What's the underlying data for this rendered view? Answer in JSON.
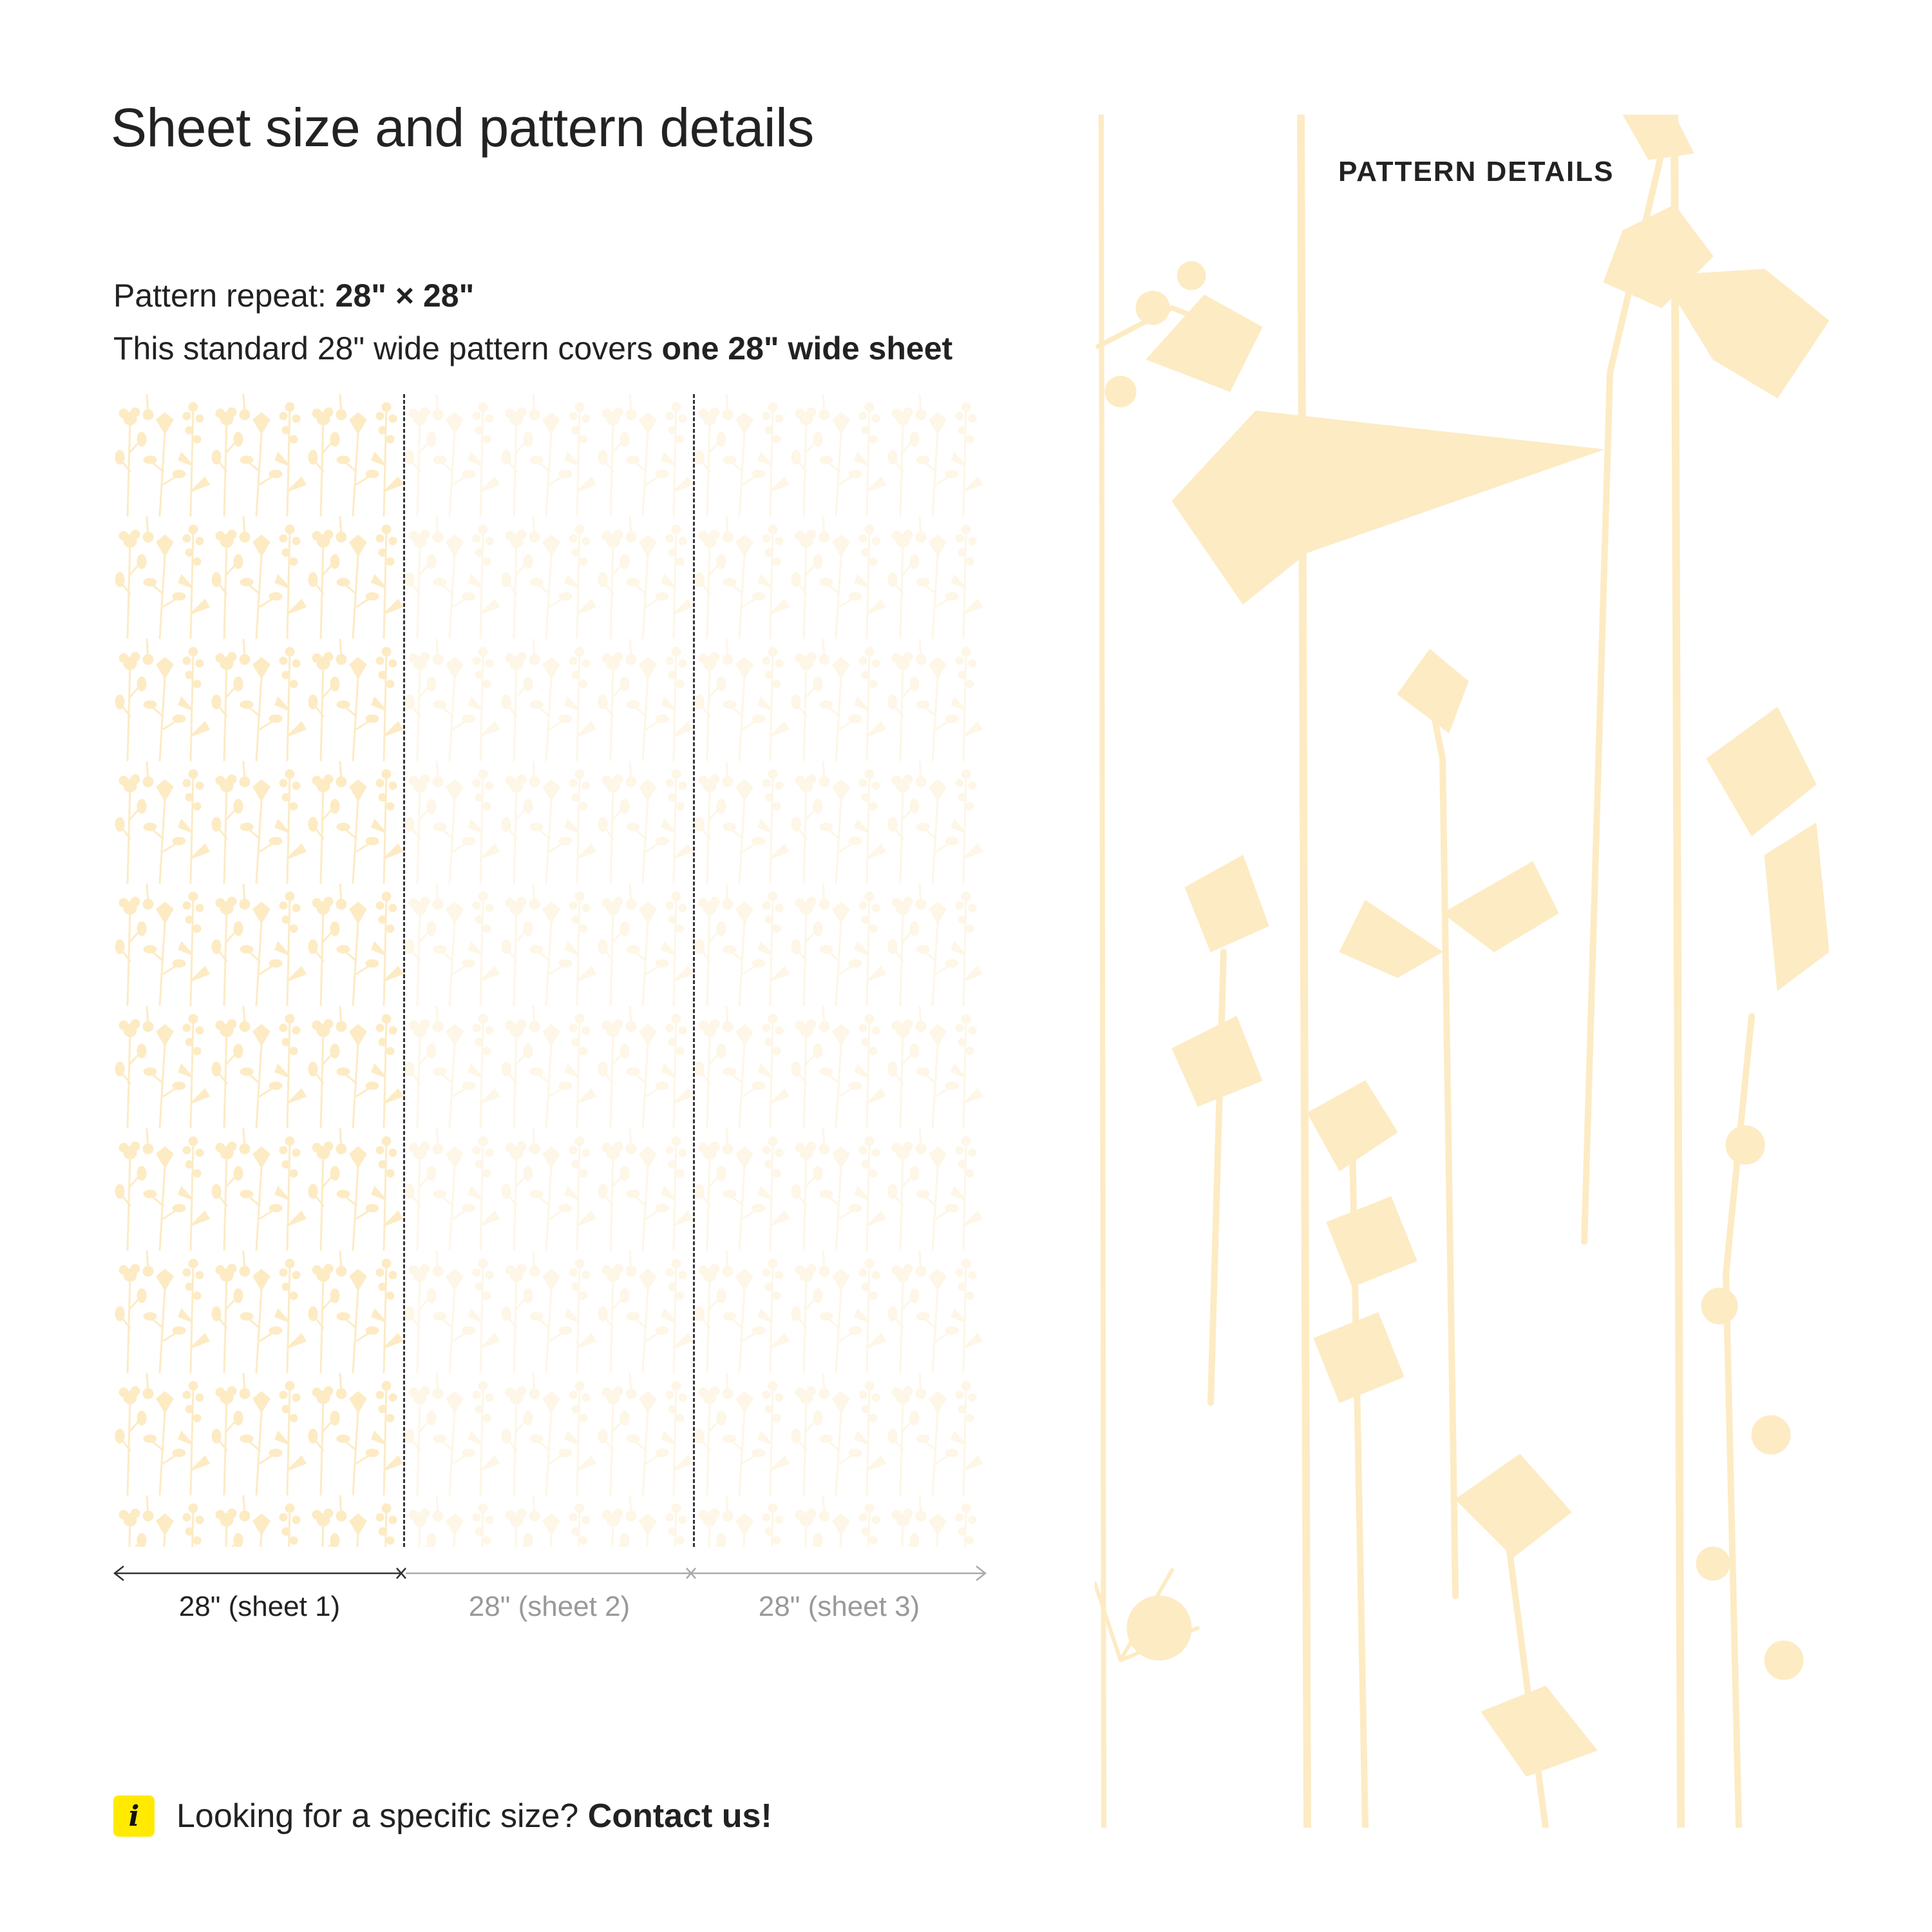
{
  "heading": "Sheet size and pattern details",
  "pattern_repeat": {
    "label": "Pattern repeat: ",
    "value": "28\" × 28\""
  },
  "coverage": {
    "prefix": "This standard 28\" wide pattern covers ",
    "emphasis": "one 28\" wide sheet"
  },
  "sheets": [
    {
      "label": "28\" (sheet 1)",
      "active": true
    },
    {
      "label": "28\" (sheet 2)",
      "active": false
    },
    {
      "label": "28\" (sheet 3)",
      "active": false
    }
  ],
  "detail_panel": {
    "label": "PATTERN DETAILS"
  },
  "contact": {
    "question": "Looking for a specific size? ",
    "link": "Contact us!",
    "icon": "info-icon"
  },
  "colors": {
    "motif": "#fdebc4",
    "accent_icon": "#ffea00",
    "text": "#222222",
    "muted": "#999999"
  }
}
